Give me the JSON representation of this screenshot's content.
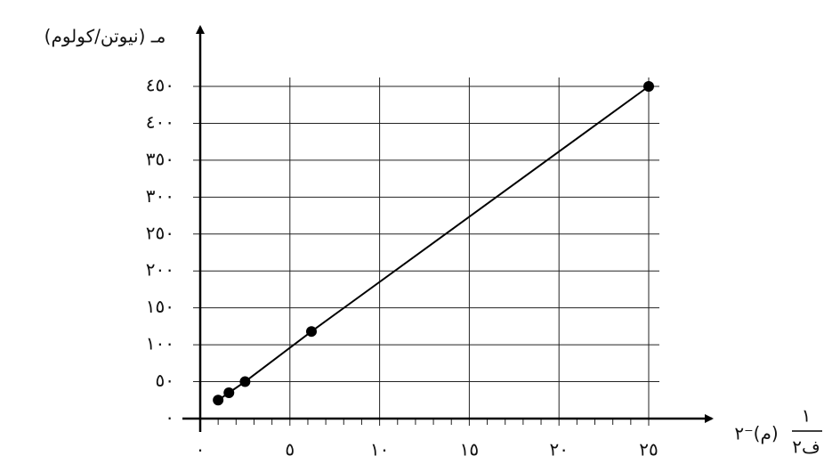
{
  "chart_data": {
    "type": "scatter",
    "y_label": "مـ (نيوتن/كولوم)",
    "x_label_numerator": "١",
    "x_label_denominator": "ف٢",
    "x_label_unit": "(م)⁻٢",
    "x": [
      1,
      1.6,
      2.5,
      6.2,
      25
    ],
    "values": [
      25,
      35,
      50,
      118,
      450
    ],
    "color": "#000000",
    "xlim": [
      0,
      25
    ],
    "ylim": [
      0,
      450
    ],
    "xticks": [
      {
        "value": 0,
        "label": "٠"
      },
      {
        "value": 5,
        "label": "٥"
      },
      {
        "value": 10,
        "label": "١٠"
      },
      {
        "value": 15,
        "label": "١٥"
      },
      {
        "value": 20,
        "label": "٢٠"
      },
      {
        "value": 25,
        "label": "٢٥"
      }
    ],
    "yticks": [
      {
        "value": 0,
        "label": "٠"
      },
      {
        "value": 50,
        "label": "٥٠"
      },
      {
        "value": 100,
        "label": "١٠٠"
      },
      {
        "value": 150,
        "label": "١٥٠"
      },
      {
        "value": 200,
        "label": "٢٠٠"
      },
      {
        "value": 250,
        "label": "٢٥٠"
      },
      {
        "value": 300,
        "label": "٣٠٠"
      },
      {
        "value": 350,
        "label": "٣٥٠"
      },
      {
        "value": 400,
        "label": "٤٠٠"
      },
      {
        "value": 450,
        "label": "٤٥٠"
      }
    ],
    "xminorticks": [
      1,
      2,
      3,
      4,
      6,
      7,
      8,
      9,
      11,
      12,
      13,
      14,
      16,
      17,
      18,
      19,
      21,
      22,
      23,
      24
    ],
    "grid": true
  }
}
